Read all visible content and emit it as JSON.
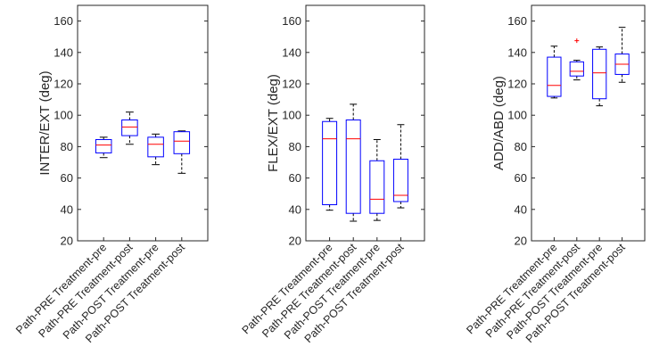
{
  "chart_data": [
    {
      "type": "boxplot",
      "ylabel": "INTER/EXT (deg)",
      "ylim": [
        20,
        170
      ],
      "yticks": [
        20,
        40,
        60,
        80,
        100,
        120,
        140,
        160
      ],
      "categories": [
        "Path-PRE Treatment-pre",
        "Path-PRE Treatment-post",
        "Path-POST Treatment-pre",
        "Path-POST Treatment-post"
      ],
      "boxes": [
        {
          "min": 73,
          "q1": 76,
          "median": 81,
          "q3": 84.5,
          "max": 86,
          "outliers": []
        },
        {
          "min": 81.5,
          "q1": 87,
          "median": 92.5,
          "q3": 97,
          "max": 102,
          "outliers": []
        },
        {
          "min": 68.5,
          "q1": 73.5,
          "median": 81.5,
          "q3": 86,
          "max": 88,
          "outliers": []
        },
        {
          "min": 63,
          "q1": 75.5,
          "median": 83.5,
          "q3": 89.5,
          "max": 90,
          "outliers": []
        }
      ]
    },
    {
      "type": "boxplot",
      "ylabel": "FLEX/EXT (deg)",
      "ylim": [
        20,
        170
      ],
      "yticks": [
        20,
        40,
        60,
        80,
        100,
        120,
        140,
        160
      ],
      "categories": [
        "Path-PRE Treatment-pre",
        "Path-PRE Treatment-post",
        "Path-POST Treatment-pre",
        "Path-POST Treatment-post"
      ],
      "boxes": [
        {
          "min": 39.5,
          "q1": 43,
          "median": 85,
          "q3": 96,
          "max": 98,
          "outliers": []
        },
        {
          "min": 32.5,
          "q1": 37.5,
          "median": 85,
          "q3": 97,
          "max": 107,
          "outliers": []
        },
        {
          "min": 33,
          "q1": 37.5,
          "median": 46.5,
          "q3": 71,
          "max": 84.5,
          "outliers": []
        },
        {
          "min": 41,
          "q1": 45,
          "median": 49,
          "q3": 72,
          "max": 94,
          "outliers": []
        }
      ]
    },
    {
      "type": "boxplot",
      "ylabel": "ADD/ABD (deg)",
      "ylim": [
        20,
        170
      ],
      "yticks": [
        20,
        40,
        60,
        80,
        100,
        120,
        140,
        160
      ],
      "categories": [
        "Path-PRE Treatment-pre",
        "Path-PRE Treatment-post",
        "Path-POST Treatment-pre",
        "Path-POST Treatment-post"
      ],
      "boxes": [
        {
          "min": 111,
          "q1": 112,
          "median": 119,
          "q3": 137,
          "max": 144,
          "outliers": []
        },
        {
          "min": 122.5,
          "q1": 125,
          "median": 128,
          "q3": 134,
          "max": 135,
          "outliers": [
            147.5
          ]
        },
        {
          "min": 106,
          "q1": 110.5,
          "median": 127,
          "q3": 142,
          "max": 143.5,
          "outliers": []
        },
        {
          "min": 121,
          "q1": 126,
          "median": 132.5,
          "q3": 139,
          "max": 156,
          "outliers": []
        }
      ]
    }
  ],
  "colors": {
    "box": "#0000ff",
    "median": "#ff0000",
    "whisker": "#000000",
    "outlier": "#ff0000",
    "axis": "#262626"
  }
}
